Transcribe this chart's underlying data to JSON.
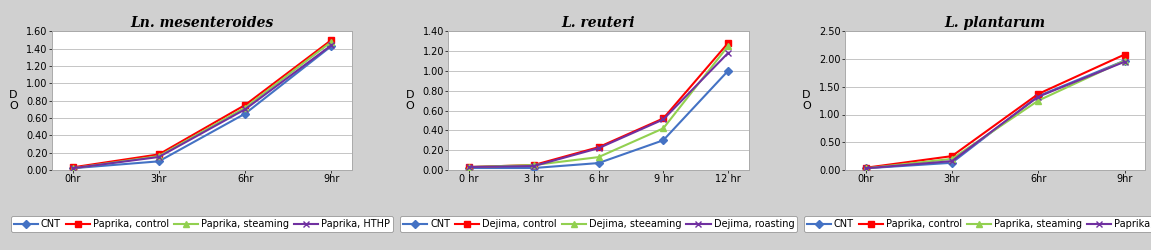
{
  "chart1": {
    "title": "Ln. mesenteroides",
    "x": [
      0,
      3,
      6,
      9
    ],
    "xlabels": [
      "0hr",
      "3hr",
      "6hr",
      "9hr"
    ],
    "ylim": [
      0.0,
      1.6
    ],
    "yticks": [
      0.0,
      0.2,
      0.4,
      0.6,
      0.8,
      1.0,
      1.2,
      1.4,
      1.6
    ],
    "ylabel": "D\nO",
    "series": [
      {
        "label": "CNT",
        "color": "#4472C4",
        "marker": "D",
        "values": [
          0.02,
          0.1,
          0.65,
          1.43
        ]
      },
      {
        "label": "Paprika, control",
        "color": "#FF0000",
        "marker": "s",
        "values": [
          0.03,
          0.18,
          0.75,
          1.5
        ]
      },
      {
        "label": "Paprika, steaming",
        "color": "#92D050",
        "marker": "^",
        "values": [
          0.02,
          0.16,
          0.72,
          1.48
        ]
      },
      {
        "label": "Paprika, HTHP",
        "color": "#7030A0",
        "marker": "x",
        "values": [
          0.02,
          0.15,
          0.7,
          1.44
        ]
      }
    ]
  },
  "chart2": {
    "title": "L. reuteri",
    "x": [
      0,
      3,
      6,
      9,
      12
    ],
    "xlabels": [
      "0 hr",
      "3 hr",
      "6 hr",
      "9 hr",
      "12 hr"
    ],
    "ylim": [
      0.0,
      1.4
    ],
    "yticks": [
      0.0,
      0.2,
      0.4,
      0.6,
      0.8,
      1.0,
      1.2,
      1.4
    ],
    "ylabel": "D\nO",
    "series": [
      {
        "label": "CNT",
        "color": "#4472C4",
        "marker": "D",
        "values": [
          0.02,
          0.02,
          0.07,
          0.3,
          1.0
        ]
      },
      {
        "label": "Dejima, control",
        "color": "#FF0000",
        "marker": "s",
        "values": [
          0.03,
          0.05,
          0.23,
          0.52,
          1.28
        ]
      },
      {
        "label": "Dejima, steeaming",
        "color": "#92D050",
        "marker": "^",
        "values": [
          0.03,
          0.05,
          0.13,
          0.42,
          1.25
        ]
      },
      {
        "label": "Dejima, roasting",
        "color": "#7030A0",
        "marker": "x",
        "values": [
          0.03,
          0.04,
          0.22,
          0.51,
          1.18
        ]
      }
    ]
  },
  "chart3": {
    "title": "L. plantarum",
    "x": [
      0,
      3,
      6,
      9
    ],
    "xlabels": [
      "0hr",
      "3hr",
      "6hr",
      "9hr"
    ],
    "ylim": [
      0.0,
      2.5
    ],
    "yticks": [
      0.0,
      0.5,
      1.0,
      1.5,
      2.0,
      2.5
    ],
    "ylabel": "D\nO",
    "series": [
      {
        "label": "CNT",
        "color": "#4472C4",
        "marker": "D",
        "values": [
          0.03,
          0.13,
          1.33,
          1.97
        ]
      },
      {
        "label": "Paprika, control",
        "color": "#FF0000",
        "marker": "s",
        "values": [
          0.04,
          0.25,
          1.37,
          2.08
        ]
      },
      {
        "label": "Paprika, steaming",
        "color": "#92D050",
        "marker": "^",
        "values": [
          0.03,
          0.2,
          1.25,
          1.97
        ]
      },
      {
        "label": "Paprika, HTHP",
        "color": "#7030A0",
        "marker": "x",
        "values": [
          0.03,
          0.16,
          1.32,
          1.95
        ]
      }
    ]
  },
  "outer_bg": "#D0D0D0",
  "panel_bg": "#FFFFFF",
  "panel_border": "#AAAAAA",
  "grid_color": "#BBBBBB",
  "title_fontsize": 10,
  "axis_fontsize": 7,
  "legend_fontsize": 7,
  "marker_size": 4,
  "line_width": 1.5
}
